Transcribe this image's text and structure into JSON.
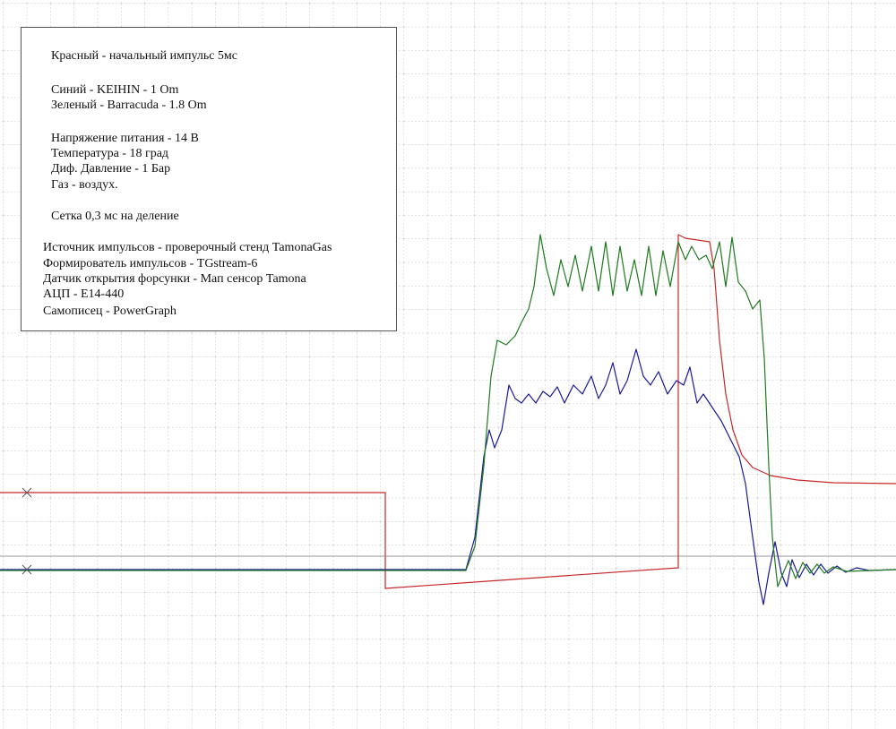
{
  "notes": {
    "header": [
      "Красный -  начальный импульс 5мс"
    ],
    "traces": [
      "Синий - KEIHIN - 1 Om",
      "Зеленый - Barracuda - 1.8 Om"
    ],
    "conditions": [
      "Напряжение питания - 14 В",
      "Температура - 18 град",
      "Диф. Давление - 1 Бар",
      "Газ - воздух."
    ],
    "grid": [
      "Сетка 0,3 мс на деление"
    ],
    "equipment": [
      "Источник импульсов - проверочный стенд TamonaGas",
      "Формирователь импульсов - TGstream-6",
      "Датчик открытия форсунки - Мап сенсор Tamona",
      "АЦП - E14-440",
      "Самописец - PowerGraph"
    ]
  }
}
